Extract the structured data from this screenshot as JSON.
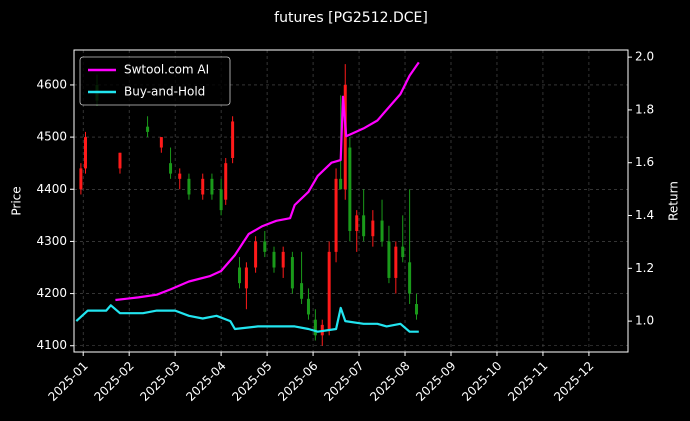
{
  "chart_data": {
    "type": "candlestick",
    "title": "futures [PG2512.DCE]",
    "ylabel": "Price",
    "y2label": "Return",
    "xlim": [
      -0.2,
      11.85
    ],
    "xticks": [
      {
        "value": 0,
        "label": "2025-01"
      },
      {
        "value": 1,
        "label": "2025-02"
      },
      {
        "value": 2,
        "label": "2025-03"
      },
      {
        "value": 3,
        "label": "2025-04"
      },
      {
        "value": 4,
        "label": "2025-05"
      },
      {
        "value": 5,
        "label": "2025-06"
      },
      {
        "value": 6,
        "label": "2025-07"
      },
      {
        "value": 7,
        "label": "2025-08"
      },
      {
        "value": 8,
        "label": "2025-09"
      },
      {
        "value": 9,
        "label": "2025-10"
      },
      {
        "value": 10,
        "label": "2025-11"
      },
      {
        "value": 11,
        "label": "2025-12"
      }
    ],
    "ylim": [
      4088,
      4667
    ],
    "yticks": [
      4100,
      4200,
      4300,
      4400,
      4500,
      4600
    ],
    "y2lim": [
      0.883,
      2.027
    ],
    "y2ticks": [
      {
        "value": 1.0,
        "label": "1.0"
      },
      1.2,
      1.4,
      1.6,
      1.8,
      {
        "value": 2.0,
        "label": "2.0"
      }
    ],
    "grid": true,
    "legend": "upper left",
    "up_color": "#ff1a1a",
    "down_color": "#1a9a1a",
    "candles": {
      "x": [
        -0.05,
        0.05,
        0.3,
        0.8,
        1.4,
        1.7,
        1.9,
        2.1,
        2.3,
        2.6,
        2.8,
        3.0,
        3.1,
        3.25,
        3.4,
        3.55,
        3.75,
        3.95,
        4.15,
        4.35,
        4.55,
        4.75,
        4.9,
        5.05,
        5.2,
        5.35,
        5.5,
        5.6,
        5.7,
        5.8,
        5.95,
        6.1,
        6.3,
        6.5,
        6.65,
        6.8,
        6.95,
        7.1,
        7.25
      ],
      "open": [
        4400,
        4440,
        4600,
        4440,
        4520,
        4480,
        4450,
        4420,
        4420,
        4390,
        4420,
        4400,
        4380,
        4460,
        4250,
        4210,
        4250,
        4300,
        4280,
        4250,
        4270,
        4220,
        4190,
        4150,
        4120,
        4130,
        4280,
        4420,
        4400,
        4480,
        4320,
        4350,
        4310,
        4340,
        4300,
        4230,
        4290,
        4260,
        4180
      ],
      "high": [
        4450,
        4510,
        4620,
        4470,
        4540,
        4500,
        4480,
        4440,
        4430,
        4430,
        4430,
        4420,
        4460,
        4540,
        4270,
        4260,
        4310,
        4320,
        4290,
        4290,
        4280,
        4280,
        4210,
        4170,
        4150,
        4300,
        4440,
        4580,
        4640,
        4500,
        4360,
        4400,
        4360,
        4380,
        4330,
        4300,
        4350,
        4400,
        4200
      ],
      "low": [
        4390,
        4430,
        4560,
        4430,
        4500,
        4470,
        4420,
        4400,
        4380,
        4380,
        4380,
        4350,
        4370,
        4450,
        4210,
        4170,
        4240,
        4270,
        4240,
        4230,
        4200,
        4180,
        4150,
        4110,
        4100,
        4120,
        4260,
        4400,
        4380,
        4300,
        4280,
        4300,
        4290,
        4290,
        4220,
        4200,
        4260,
        4180,
        4150
      ],
      "close": [
        4440,
        4500,
        4570,
        4470,
        4510,
        4500,
        4430,
        4430,
        4390,
        4420,
        4390,
        4360,
        4450,
        4530,
        4220,
        4250,
        4300,
        4280,
        4250,
        4280,
        4210,
        4190,
        4160,
        4120,
        4140,
        4280,
        4420,
        4400,
        4600,
        4320,
        4350,
        4310,
        4340,
        4300,
        4230,
        4290,
        4270,
        4200,
        4160
      ]
    },
    "series": [
      {
        "name": "Swtool.com AI",
        "color": "#ff00ff",
        "axis": "y2",
        "x": [
          0.7,
          1.2,
          1.6,
          1.9,
          2.3,
          2.75,
          3.0,
          3.3,
          3.6,
          3.9,
          4.2,
          4.5,
          4.6,
          4.9,
          5.1,
          5.4,
          5.6,
          5.65,
          5.72,
          6.1,
          6.4,
          6.6,
          6.9,
          7.1,
          7.3
        ],
        "values": [
          1.08,
          1.09,
          1.1,
          1.12,
          1.15,
          1.17,
          1.19,
          1.25,
          1.33,
          1.36,
          1.38,
          1.39,
          1.44,
          1.49,
          1.55,
          1.6,
          1.61,
          1.85,
          1.7,
          1.73,
          1.76,
          1.8,
          1.86,
          1.93,
          1.98
        ]
      },
      {
        "name": "Buy-and-Hold",
        "color": "#22e5f0",
        "axis": "y2",
        "x": [
          -0.15,
          0.1,
          0.5,
          0.6,
          0.8,
          1.3,
          1.6,
          2.0,
          2.3,
          2.6,
          2.9,
          3.2,
          3.3,
          3.8,
          4.2,
          4.6,
          4.9,
          5.1,
          5.5,
          5.6,
          5.7,
          6.1,
          6.4,
          6.6,
          6.9,
          7.1,
          7.3
        ],
        "values": [
          1.0,
          1.04,
          1.04,
          1.06,
          1.03,
          1.03,
          1.04,
          1.04,
          1.02,
          1.01,
          1.02,
          1.0,
          0.97,
          0.98,
          0.98,
          0.98,
          0.97,
          0.96,
          0.97,
          1.05,
          1.0,
          0.99,
          0.99,
          0.98,
          0.99,
          0.96,
          0.96
        ]
      }
    ]
  }
}
